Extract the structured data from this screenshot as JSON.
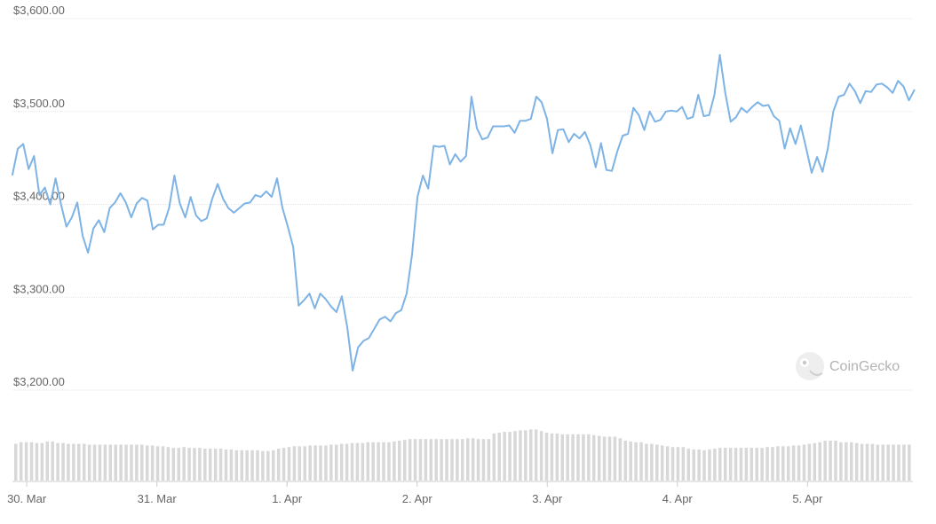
{
  "watermark": {
    "text": "CoinGecko",
    "icon": "gecko-logo-icon"
  },
  "colors": {
    "line": "#7eb3e6",
    "volume": "#d8d8d8",
    "grid": "#e6e6e6",
    "tick_text": "#666666",
    "background": "#ffffff"
  },
  "chart_data": {
    "type": "line",
    "title": "",
    "xlabel": "",
    "ylabel": "",
    "ylim": [
      3170,
      3610
    ],
    "yticks": [
      {
        "value": 3200,
        "label": "$3,200.00"
      },
      {
        "value": 3300,
        "label": "$3,300.00"
      },
      {
        "value": 3400,
        "label": "$3,400.00"
      },
      {
        "value": 3500,
        "label": "$3,500.00"
      },
      {
        "value": 3600,
        "label": "$3,600.00"
      }
    ],
    "xticks": [
      {
        "value": 0.5,
        "label": "30. Mar"
      },
      {
        "value": 1.5,
        "label": "31. Mar"
      },
      {
        "value": 2.5,
        "label": "1. Apr"
      },
      {
        "value": 3.5,
        "label": "2. Apr"
      },
      {
        "value": 4.5,
        "label": "3. Apr"
      },
      {
        "value": 5.5,
        "label": "4. Apr"
      },
      {
        "value": 6.5,
        "label": "5. Apr"
      }
    ],
    "xlim": [
      0.39,
      7.31
    ],
    "grid": true,
    "legend": "none",
    "series": [
      {
        "type": "line",
        "x_start": 0.39,
        "x_step": 0.0415,
        "values": [
          3432,
          3460,
          3465,
          3438,
          3452,
          3410,
          3418,
          3400,
          3428,
          3400,
          3376,
          3386,
          3402,
          3366,
          3348,
          3374,
          3383,
          3370,
          3396,
          3402,
          3412,
          3402,
          3386,
          3401,
          3407,
          3404,
          3373,
          3378,
          3378,
          3396,
          3431,
          3401,
          3386,
          3408,
          3388,
          3382,
          3385,
          3406,
          3422,
          3406,
          3396,
          3391,
          3396,
          3401,
          3402,
          3410,
          3408,
          3414,
          3408,
          3428,
          3396,
          3376,
          3354,
          3291,
          3297,
          3304,
          3288,
          3304,
          3298,
          3290,
          3284,
          3301,
          3268,
          3221,
          3246,
          3253,
          3256,
          3266,
          3276,
          3279,
          3274,
          3283,
          3286,
          3304,
          3346,
          3408,
          3431,
          3417,
          3463,
          3462,
          3463,
          3443,
          3454,
          3446,
          3452,
          3516,
          3482,
          3470,
          3472,
          3484,
          3484,
          3484,
          3485,
          3477,
          3490,
          3490,
          3492,
          3516,
          3510,
          3492,
          3455,
          3480,
          3481,
          3467,
          3476,
          3471,
          3478,
          3464,
          3440,
          3466,
          3437,
          3436,
          3457,
          3474,
          3476,
          3504,
          3496,
          3480,
          3500,
          3489,
          3491,
          3500,
          3501,
          3500,
          3505,
          3492,
          3494,
          3518,
          3495,
          3496,
          3518,
          3561,
          3520,
          3489,
          3494,
          3504,
          3499,
          3505,
          3510,
          3506,
          3507,
          3495,
          3490,
          3460,
          3482,
          3465,
          3485,
          3460,
          3434,
          3451,
          3435,
          3460,
          3500,
          3516,
          3518,
          3530,
          3522,
          3509,
          3522,
          3521,
          3529,
          3530,
          3526,
          3520,
          3533,
          3527,
          3512,
          3523
        ]
      },
      {
        "type": "volume",
        "name": "Volume",
        "values": [
          0.46,
          0.48,
          0.48,
          0.48,
          0.47,
          0.47,
          0.49,
          0.49,
          0.47,
          0.47,
          0.46,
          0.46,
          0.46,
          0.46,
          0.45,
          0.45,
          0.45,
          0.45,
          0.45,
          0.45,
          0.45,
          0.45,
          0.45,
          0.45,
          0.45,
          0.44,
          0.44,
          0.43,
          0.43,
          0.42,
          0.41,
          0.41,
          0.42,
          0.41,
          0.41,
          0.41,
          0.4,
          0.4,
          0.4,
          0.4,
          0.39,
          0.39,
          0.38,
          0.38,
          0.38,
          0.38,
          0.38,
          0.37,
          0.37,
          0.38,
          0.4,
          0.41,
          0.42,
          0.43,
          0.43,
          0.43,
          0.44,
          0.44,
          0.44,
          0.44,
          0.45,
          0.45,
          0.46,
          0.46,
          0.47,
          0.47,
          0.47,
          0.48,
          0.48,
          0.48,
          0.48,
          0.48,
          0.49,
          0.5,
          0.51,
          0.52,
          0.52,
          0.52,
          0.52,
          0.52,
          0.52,
          0.52,
          0.52,
          0.52,
          0.52,
          0.52,
          0.53,
          0.53,
          0.52,
          0.52,
          0.52,
          0.59,
          0.6,
          0.61,
          0.61,
          0.62,
          0.63,
          0.63,
          0.64,
          0.64,
          0.62,
          0.6,
          0.59,
          0.59,
          0.58,
          0.58,
          0.58,
          0.58,
          0.58,
          0.58,
          0.57,
          0.56,
          0.55,
          0.55,
          0.55,
          0.53,
          0.5,
          0.49,
          0.48,
          0.48,
          0.46,
          0.46,
          0.45,
          0.44,
          0.43,
          0.42,
          0.42,
          0.42,
          0.4,
          0.39,
          0.39,
          0.38,
          0.39,
          0.4,
          0.41,
          0.41,
          0.41,
          0.41,
          0.41,
          0.41,
          0.41,
          0.41,
          0.41,
          0.42,
          0.42,
          0.43,
          0.43,
          0.43,
          0.44,
          0.44,
          0.45,
          0.46,
          0.47,
          0.48,
          0.5,
          0.5,
          0.5,
          0.48,
          0.48,
          0.48,
          0.47,
          0.46,
          0.46,
          0.46,
          0.45,
          0.45,
          0.45,
          0.45,
          0.45,
          0.45,
          0.45
        ]
      }
    ]
  }
}
